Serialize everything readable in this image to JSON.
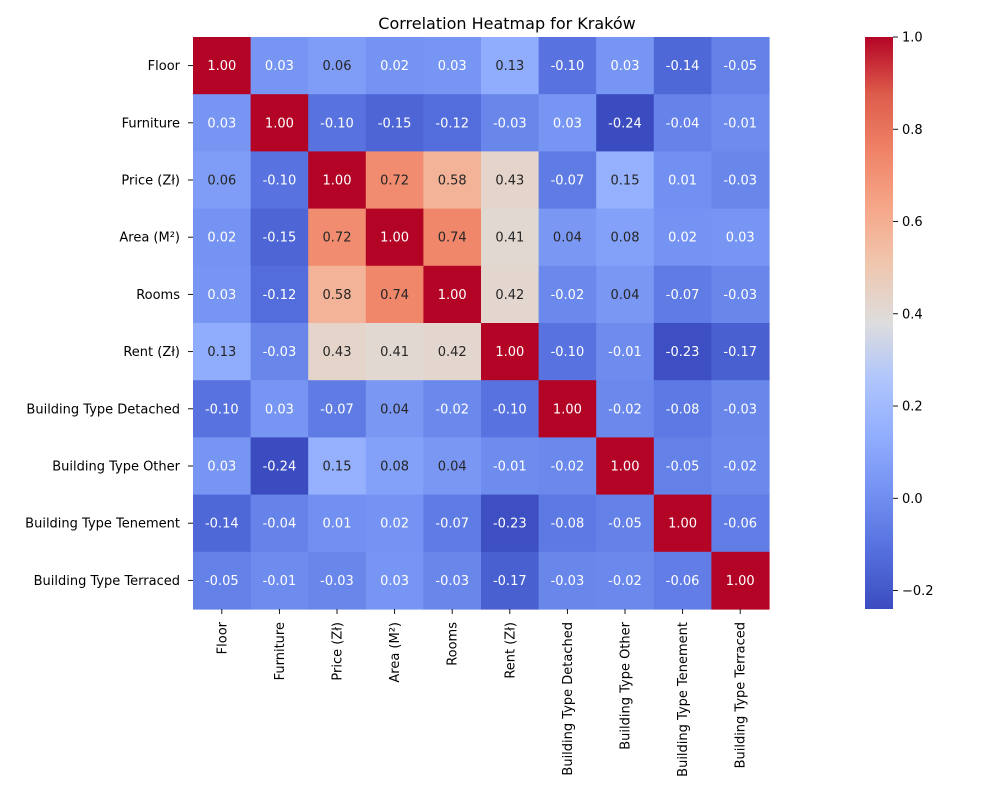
{
  "chart_data": {
    "type": "heatmap",
    "title": "Correlation Heatmap for Kraków",
    "row_labels": [
      "Floor",
      "Furniture",
      "Price (Zł)",
      "Area (M²)",
      "Rooms",
      "Rent (Zł)",
      "Building Type Detached",
      "Building Type Other",
      "Building Type Tenement",
      "Building Type Terraced"
    ],
    "col_labels": [
      "Floor",
      "Furniture",
      "Price (Zł)",
      "Area (M²)",
      "Rooms",
      "Rent (Zł)",
      "Building Type Detached",
      "Building Type Other",
      "Building Type Tenement",
      "Building Type Terraced"
    ],
    "values": [
      [
        1.0,
        0.03,
        0.06,
        0.02,
        0.03,
        0.13,
        -0.1,
        0.03,
        -0.14,
        -0.05
      ],
      [
        0.03,
        1.0,
        -0.1,
        -0.15,
        -0.12,
        -0.03,
        0.03,
        -0.24,
        -0.04,
        -0.01
      ],
      [
        0.06,
        -0.1,
        1.0,
        0.72,
        0.58,
        0.43,
        -0.07,
        0.15,
        0.01,
        -0.03
      ],
      [
        0.02,
        -0.15,
        0.72,
        1.0,
        0.74,
        0.41,
        0.04,
        0.08,
        0.02,
        0.03
      ],
      [
        0.03,
        -0.12,
        0.58,
        0.74,
        1.0,
        0.42,
        -0.02,
        0.04,
        -0.07,
        -0.03
      ],
      [
        0.13,
        -0.03,
        0.43,
        0.41,
        0.42,
        1.0,
        -0.1,
        -0.01,
        -0.23,
        -0.17
      ],
      [
        -0.1,
        0.03,
        -0.07,
        0.04,
        -0.02,
        -0.1,
        1.0,
        -0.02,
        -0.08,
        -0.03
      ],
      [
        0.03,
        -0.24,
        0.15,
        0.08,
        0.04,
        -0.01,
        -0.02,
        1.0,
        -0.05,
        -0.02
      ],
      [
        -0.14,
        -0.04,
        0.01,
        0.02,
        -0.07,
        -0.23,
        -0.08,
        -0.05,
        1.0,
        -0.06
      ],
      [
        -0.05,
        -0.01,
        -0.03,
        0.03,
        -0.03,
        -0.17,
        -0.03,
        -0.02,
        -0.06,
        1.0
      ]
    ],
    "value_format": "0.00",
    "colormap": "coolwarm",
    "vmin": -0.24,
    "vmax": 1.0,
    "colorbar_ticks": [
      -0.2,
      0.0,
      0.2,
      0.4,
      0.6,
      0.8,
      1.0
    ],
    "colorbar_tick_labels": [
      "−0.2",
      "0.0",
      "0.2",
      "0.4",
      "0.6",
      "0.8",
      "1.0"
    ],
    "annotation_light_color": "#ffffff",
    "annotation_dark_color": "#262626"
  }
}
